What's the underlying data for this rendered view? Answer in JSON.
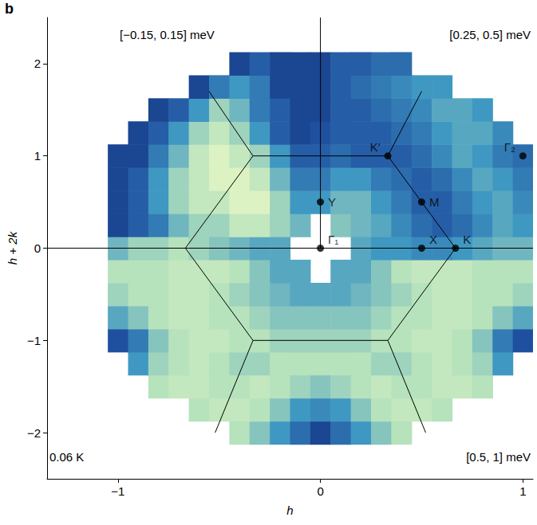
{
  "chart_data": {
    "type": "heatmap",
    "panel_label": "b",
    "xlabel": "h",
    "ylabel": "h + 2k",
    "xlim": [
      -1.35,
      1.05
    ],
    "xticks": [
      {
        "value": -1,
        "label": "−1"
      },
      0,
      1
    ],
    "ylim": [
      -2.5,
      2.5
    ],
    "yticks": [
      {
        "value": -2,
        "label": "−2"
      },
      {
        "value": -1,
        "label": "−1"
      },
      0,
      1,
      2
    ],
    "x": [
      -1.0,
      -0.9,
      -0.8,
      -0.7,
      -0.6,
      -0.5,
      -0.4,
      -0.3,
      -0.2,
      -0.1,
      0.0,
      0.1,
      0.2,
      0.3,
      0.4,
      0.5,
      0.6,
      0.7,
      0.8,
      0.9,
      1.0
    ],
    "y": [
      -2.0,
      -1.75,
      -1.5,
      -1.25,
      -1.0,
      -0.75,
      -0.5,
      -0.25,
      0.0,
      0.25,
      0.5,
      0.75,
      1.0,
      1.25,
      1.5,
      1.75,
      2.0
    ],
    "values": [
      [
        null,
        null,
        null,
        null,
        null,
        null,
        7.5,
        6.5,
        5,
        3.5,
        2,
        3.5,
        5,
        6.5,
        7.5,
        null,
        null,
        null,
        null,
        null,
        null
      ],
      [
        null,
        null,
        null,
        null,
        7.5,
        8,
        8,
        7.5,
        6.5,
        5,
        4.5,
        5,
        6.5,
        7.5,
        8,
        8,
        7.5,
        null,
        null,
        null,
        null
      ],
      [
        null,
        null,
        7.5,
        8,
        8,
        7.5,
        7.5,
        8,
        7.5,
        7,
        6.5,
        7,
        7.5,
        8,
        7.5,
        7.5,
        8,
        8,
        7.5,
        null,
        null
      ],
      [
        null,
        5,
        7,
        7.5,
        8,
        7.5,
        7,
        7,
        7.5,
        7.5,
        7.5,
        7.5,
        7.5,
        7,
        7,
        7.5,
        8,
        7.5,
        7,
        5,
        null
      ],
      [
        2.5,
        4,
        6.5,
        7.5,
        8,
        8,
        7.5,
        7.5,
        7,
        7,
        7,
        7,
        7,
        7.5,
        7.5,
        8,
        8,
        7.5,
        6.5,
        4,
        2.5
      ],
      [
        5.5,
        6.5,
        7.5,
        8,
        8,
        7.5,
        7.5,
        7,
        6.5,
        6.5,
        6.5,
        6.5,
        6.5,
        7,
        7.5,
        7.5,
        8,
        8,
        7.5,
        6.5,
        5.5
      ],
      [
        7,
        7.5,
        7.5,
        8,
        8,
        7.5,
        7,
        6.5,
        6,
        5.5,
        5.5,
        5.5,
        6,
        6.5,
        7,
        7.5,
        8,
        8,
        7.5,
        7.5,
        7
      ],
      [
        7.5,
        7.5,
        7.5,
        8,
        8,
        8,
        7.5,
        6.5,
        5.5,
        5.5,
        null,
        5.5,
        5.5,
        6.5,
        7.5,
        8,
        8,
        8,
        7.5,
        7.5,
        7.5
      ],
      [
        6,
        7,
        7,
        7.5,
        7,
        6.5,
        6,
        5.5,
        5.5,
        null,
        null,
        null,
        5.5,
        5,
        5,
        4.5,
        4.5,
        5,
        5.5,
        6,
        6
      ],
      [
        2,
        3,
        4,
        6,
        7,
        7,
        8,
        8,
        7,
        6,
        null,
        6.5,
        6,
        5.5,
        4.5,
        3.5,
        3,
        3.5,
        4.5,
        5.5,
        5
      ],
      [
        2,
        3,
        5,
        7,
        8,
        8,
        9,
        9,
        7,
        5,
        5,
        6,
        6,
        5,
        4,
        3,
        3,
        4,
        5,
        5.5,
        4.5
      ],
      [
        2,
        3,
        5,
        7,
        8,
        9,
        9,
        8,
        6,
        4,
        4,
        5,
        5,
        4,
        3.5,
        3,
        3.5,
        4.5,
        5.5,
        5,
        4
      ],
      [
        2,
        2,
        4,
        6,
        8,
        9,
        8,
        7,
        5,
        3,
        3,
        3.5,
        3,
        3,
        3,
        3.5,
        4.5,
        5.5,
        5,
        4,
        3.5
      ],
      [
        null,
        2,
        3,
        5,
        7,
        8,
        7,
        5,
        3,
        2,
        2.5,
        3,
        3,
        3,
        3.5,
        4,
        5,
        5.5,
        5.5,
        4.5,
        null
      ],
      [
        null,
        null,
        2,
        3,
        5,
        7,
        6,
        4,
        3,
        2,
        2,
        3,
        3,
        3.5,
        4,
        4.5,
        5.5,
        5.5,
        5,
        null,
        null
      ],
      [
        null,
        null,
        null,
        null,
        2,
        4,
        5,
        4,
        2,
        2,
        2,
        3,
        3.5,
        4,
        4.5,
        5,
        5,
        null,
        null,
        null,
        null
      ],
      [
        null,
        null,
        null,
        null,
        null,
        null,
        2,
        3,
        2,
        2,
        2,
        3,
        3,
        3.5,
        3.5,
        null,
        null,
        null,
        null,
        null,
        null
      ]
    ],
    "zlim": [
      0,
      10
    ],
    "points": [
      {
        "label": "Y",
        "x": 0,
        "y": 0.5
      },
      {
        "label": "Γ₁",
        "x": 0,
        "y": 0
      },
      {
        "label": "X",
        "x": 0.5,
        "y": 0
      },
      {
        "label": "K",
        "x": 0.667,
        "y": 0
      },
      {
        "label": "M",
        "x": 0.5,
        "y": 0.5
      },
      {
        "label": "K′",
        "x": 0.333,
        "y": 1
      },
      {
        "label": "Γ₂",
        "x": 1,
        "y": 1
      }
    ],
    "zone_lines": [
      [
        [
          0.667,
          0
        ],
        [
          0.333,
          1
        ],
        [
          -0.333,
          1
        ],
        [
          -0.667,
          0
        ],
        [
          -0.333,
          -1
        ],
        [
          0.333,
          -1
        ],
        [
          0.667,
          0
        ]
      ],
      [
        [
          -1.35,
          0
        ],
        [
          1.05,
          0
        ]
      ],
      [
        [
          0,
          0
        ],
        [
          0,
          2.5
        ]
      ],
      [
        [
          -0.333,
          1
        ],
        [
          -0.55,
          1.7
        ]
      ],
      [
        [
          0.333,
          1
        ],
        [
          0.5,
          1.7
        ]
      ],
      [
        [
          -0.333,
          -1
        ],
        [
          -0.52,
          -2
        ]
      ],
      [
        [
          0.333,
          -1
        ],
        [
          0.52,
          -2
        ]
      ]
    ],
    "annotations": [
      "[−0.15, 0.15] meV",
      "[0.25, 0.5] meV",
      "[0.5, 1] meV"
    ],
    "temperature": "0.06 K"
  }
}
